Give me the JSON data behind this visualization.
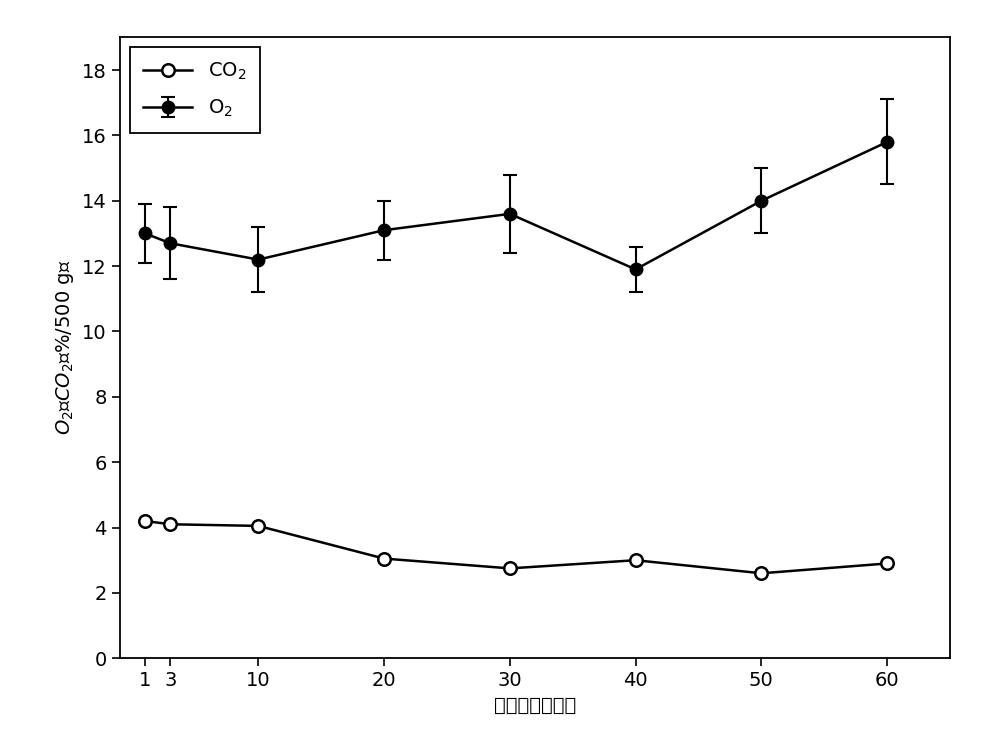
{
  "x": [
    1,
    3,
    10,
    20,
    30,
    40,
    50,
    60
  ],
  "o2_y": [
    13.0,
    12.7,
    12.2,
    13.1,
    13.6,
    11.9,
    14.0,
    15.8
  ],
  "o2_err": [
    0.9,
    1.1,
    1.0,
    0.9,
    1.2,
    0.7,
    1.0,
    1.3
  ],
  "co2_y": [
    4.2,
    4.1,
    4.05,
    3.05,
    2.75,
    3.0,
    2.6,
    2.9
  ],
  "ylim": [
    0,
    19
  ],
  "yticks": [
    0,
    2,
    4,
    6,
    8,
    10,
    12,
    14,
    16,
    18
  ],
  "xlim": [
    -1,
    65
  ],
  "xticks": [
    1,
    3,
    10,
    20,
    30,
    40,
    50,
    60
  ],
  "xlabel_cn": "贯藏天数（天）",
  "ylabel_o2": "O",
  "ylabel_co2": "CO",
  "line_color": "#000000",
  "legend_o2": "O$_2$",
  "legend_co2": "CO$_2$",
  "background_color": "#ffffff",
  "figsize": [
    10.0,
    7.48
  ],
  "dpi": 100,
  "markersize": 9,
  "linewidth": 1.8,
  "capsize": 5,
  "tick_fontsize": 14,
  "label_fontsize": 14
}
